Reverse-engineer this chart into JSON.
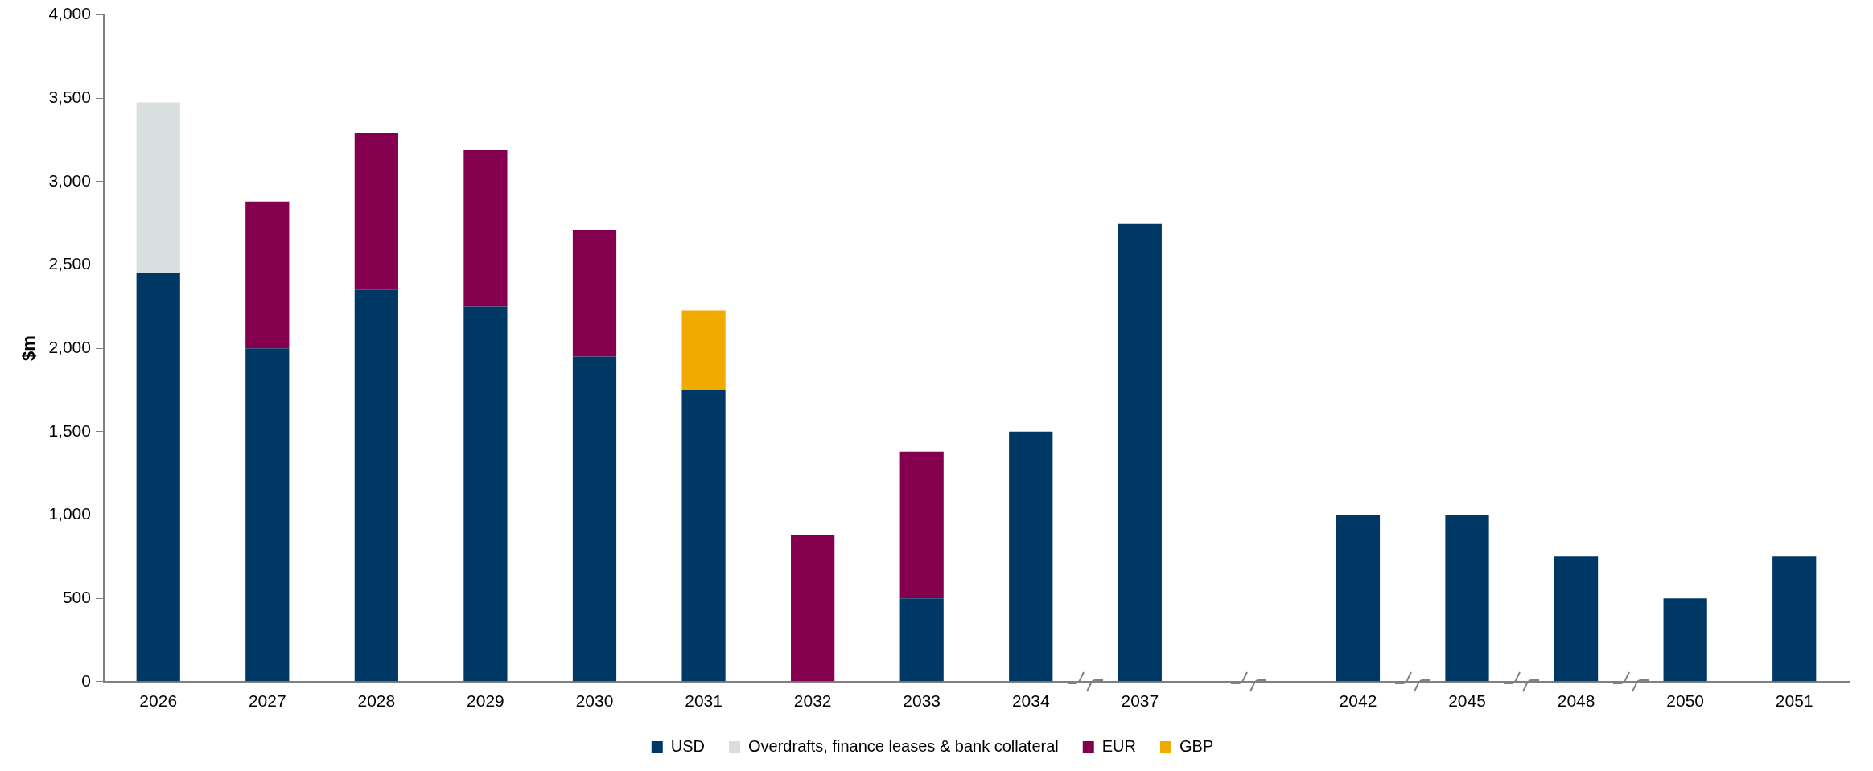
{
  "chart_data": {
    "type": "bar",
    "stacked": true,
    "ylabel": "$m",
    "categories": [
      "2026",
      "2027",
      "2028",
      "2029",
      "2030",
      "2031",
      "2032",
      "2033",
      "2034",
      "2037",
      null,
      "2042",
      "2045",
      "2048",
      "2050",
      "2051"
    ],
    "series": [
      {
        "name": "USD",
        "color": "#003865",
        "values": [
          2450,
          2000,
          2350,
          2250,
          1950,
          1750,
          null,
          500,
          1500,
          2750,
          null,
          1000,
          1000,
          750,
          500,
          750
        ]
      },
      {
        "name": "Overdrafts, finance leases & bank collateral",
        "color": "#d9dedf",
        "values": [
          1025,
          null,
          null,
          null,
          null,
          null,
          null,
          null,
          null,
          null,
          null,
          null,
          null,
          null,
          null,
          null
        ]
      },
      {
        "name": "EUR",
        "color": "#84004f",
        "values": [
          null,
          880,
          940,
          940,
          760,
          null,
          880,
          880,
          null,
          null,
          null,
          null,
          null,
          null,
          null,
          null
        ]
      },
      {
        "name": "GBP",
        "color": "#f0aa00",
        "values": [
          null,
          null,
          null,
          null,
          null,
          475,
          null,
          null,
          null,
          null,
          null,
          null,
          null,
          null,
          null,
          null
        ]
      }
    ],
    "ylim": [
      0,
      4000
    ],
    "yticks": [
      0,
      500,
      {
        "value": 1000,
        "label": "1,000"
      },
      {
        "value": 1500,
        "label": "1,500"
      },
      {
        "value": 2000,
        "label": "2,000"
      },
      {
        "value": 2500,
        "label": "2,500"
      },
      {
        "value": 3000,
        "label": "3,000"
      },
      {
        "value": 3500,
        "label": "3,500"
      },
      {
        "value": 4000,
        "label": "4,000"
      }
    ],
    "grid": false,
    "legend": "bottom"
  }
}
